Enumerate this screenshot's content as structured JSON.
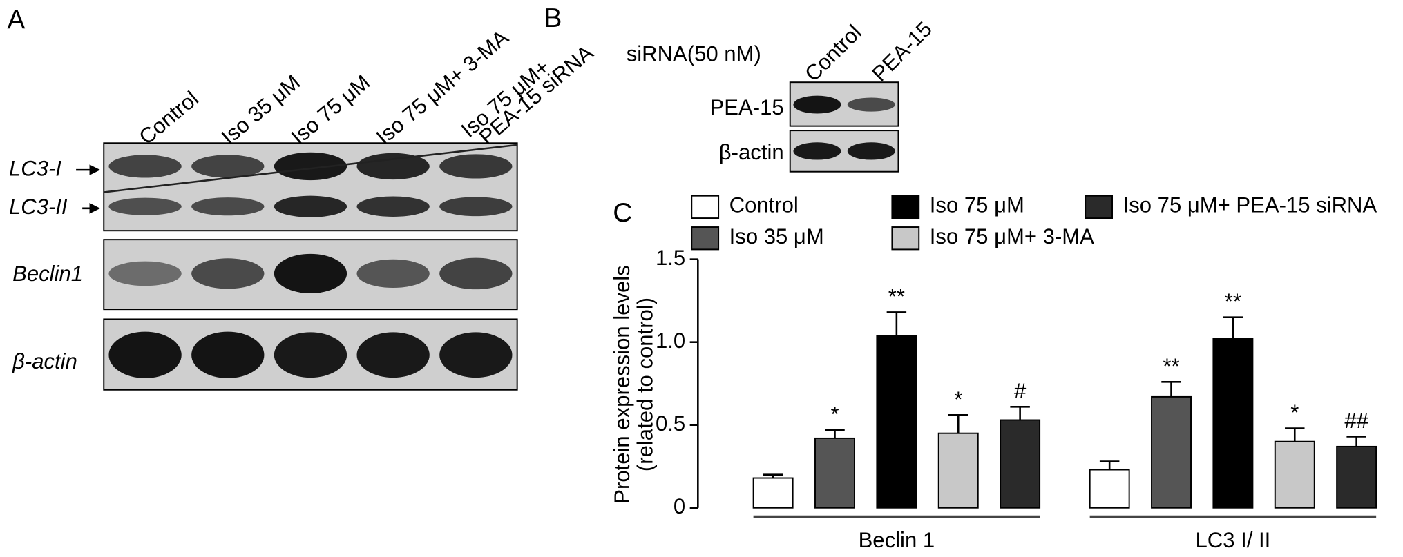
{
  "panel_labels": [
    "A",
    "B",
    "C"
  ],
  "blot_a": {
    "lanes": [
      "Control",
      "Iso 35 μM",
      "Iso 75 μM",
      "Iso 75 μM+ 3-MA",
      [
        "Iso 75 μM+",
        "PEA-15 siRNA"
      ]
    ],
    "rows": [
      "LC3-I",
      "LC3-II",
      "Beclin1",
      "β-actin"
    ]
  },
  "blot_b": {
    "condition": "siRNA(50 nM)",
    "lanes": [
      "Control",
      "PEA-15"
    ],
    "rows": [
      "PEA-15",
      "β-actin"
    ]
  },
  "chart_data": {
    "type": "bar",
    "y_label": [
      "Protein expression levels",
      "(related to control)"
    ],
    "categories": [
      "Beclin 1",
      "LC3 I/ II"
    ],
    "ylim": [
      0,
      1.5
    ],
    "yticks": [
      0,
      0.5,
      {
        "value": 1,
        "label": "1.0"
      },
      {
        "value": 1.5,
        "label": "1.5"
      }
    ],
    "series": [
      {
        "name": "Control",
        "color": "#ffffff",
        "values": [
          0.18,
          0.23
        ],
        "errors": [
          0.02,
          0.05
        ],
        "significance": [
          null,
          null
        ]
      },
      {
        "name": "Iso 35 μM",
        "color": "#555555",
        "values": [
          0.42,
          0.67
        ],
        "errors": [
          0.05,
          0.09
        ],
        "significance": [
          "*",
          "**"
        ]
      },
      {
        "name": "Iso 75 μM",
        "color": "#000000",
        "values": [
          1.04,
          1.02
        ],
        "errors": [
          0.14,
          0.13
        ],
        "significance": [
          "**",
          "**"
        ]
      },
      {
        "name": "Iso 75 μM+ 3-MA",
        "color": "#c8c8c8",
        "values": [
          0.45,
          0.4
        ],
        "errors": [
          0.11,
          0.08
        ],
        "significance": [
          "*",
          "*"
        ]
      },
      {
        "name": "Iso 75 μM+ PEA-15 siRNA",
        "color": "#2a2a2a",
        "values": [
          0.53,
          0.37
        ],
        "errors": [
          0.08,
          0.06
        ],
        "significance": [
          "#",
          "##"
        ]
      }
    ]
  }
}
